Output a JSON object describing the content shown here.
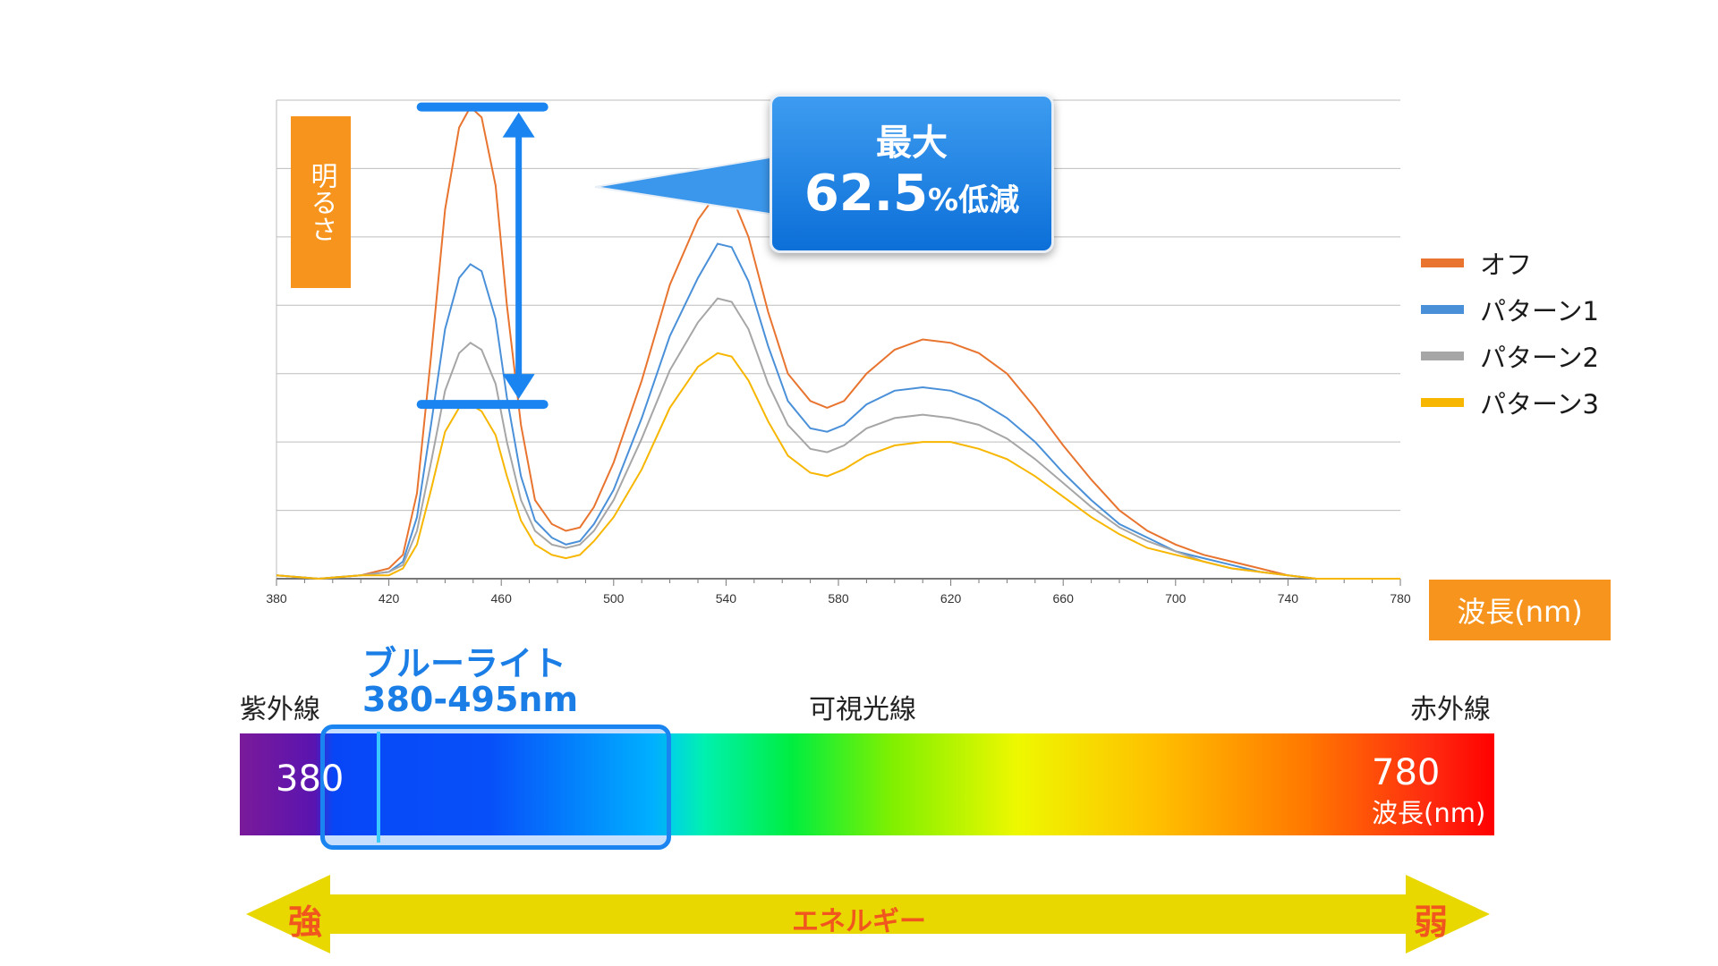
{
  "chart_data": {
    "type": "line",
    "title": "",
    "ylabel": "明るさ",
    "xlabel": "波長(nm)",
    "xlim": [
      380,
      780
    ],
    "ylim": [
      0,
      1.4
    ],
    "x_ticks": [
      "380",
      "420",
      "460",
      "500",
      "540",
      "580",
      "620",
      "660",
      "700",
      "740",
      "780"
    ],
    "grid": true,
    "legend_position": "right",
    "series": [
      {
        "name": "オフ",
        "color": "#e8742f",
        "points": [
          [
            380,
            0.01
          ],
          [
            395,
            0.0
          ],
          [
            410,
            0.01
          ],
          [
            420,
            0.03
          ],
          [
            425,
            0.07
          ],
          [
            430,
            0.25
          ],
          [
            435,
            0.65
          ],
          [
            440,
            1.08
          ],
          [
            445,
            1.32
          ],
          [
            449,
            1.38
          ],
          [
            453,
            1.35
          ],
          [
            458,
            1.15
          ],
          [
            462,
            0.8
          ],
          [
            467,
            0.45
          ],
          [
            472,
            0.23
          ],
          [
            478,
            0.16
          ],
          [
            483,
            0.14
          ],
          [
            488,
            0.15
          ],
          [
            493,
            0.21
          ],
          [
            500,
            0.34
          ],
          [
            510,
            0.58
          ],
          [
            520,
            0.86
          ],
          [
            530,
            1.05
          ],
          [
            537,
            1.13
          ],
          [
            542,
            1.12
          ],
          [
            548,
            1.0
          ],
          [
            555,
            0.78
          ],
          [
            562,
            0.6
          ],
          [
            570,
            0.52
          ],
          [
            576,
            0.5
          ],
          [
            582,
            0.52
          ],
          [
            590,
            0.6
          ],
          [
            600,
            0.67
          ],
          [
            610,
            0.7
          ],
          [
            620,
            0.69
          ],
          [
            630,
            0.66
          ],
          [
            640,
            0.6
          ],
          [
            650,
            0.5
          ],
          [
            660,
            0.39
          ],
          [
            670,
            0.29
          ],
          [
            680,
            0.2
          ],
          [
            690,
            0.14
          ],
          [
            700,
            0.1
          ],
          [
            710,
            0.07
          ],
          [
            720,
            0.05
          ],
          [
            730,
            0.03
          ],
          [
            740,
            0.01
          ],
          [
            750,
            0.0
          ],
          [
            760,
            0.0
          ],
          [
            770,
            0.0
          ],
          [
            780,
            0.0
          ]
        ]
      },
      {
        "name": "パターン1",
        "color": "#4a90d9",
        "points": [
          [
            380,
            0.01
          ],
          [
            395,
            0.0
          ],
          [
            410,
            0.01
          ],
          [
            420,
            0.02
          ],
          [
            425,
            0.05
          ],
          [
            430,
            0.18
          ],
          [
            435,
            0.45
          ],
          [
            440,
            0.73
          ],
          [
            445,
            0.88
          ],
          [
            449,
            0.92
          ],
          [
            453,
            0.9
          ],
          [
            458,
            0.76
          ],
          [
            462,
            0.53
          ],
          [
            467,
            0.3
          ],
          [
            472,
            0.17
          ],
          [
            478,
            0.12
          ],
          [
            483,
            0.1
          ],
          [
            488,
            0.11
          ],
          [
            493,
            0.16
          ],
          [
            500,
            0.26
          ],
          [
            510,
            0.47
          ],
          [
            520,
            0.71
          ],
          [
            530,
            0.88
          ],
          [
            537,
            0.98
          ],
          [
            542,
            0.97
          ],
          [
            548,
            0.87
          ],
          [
            555,
            0.68
          ],
          [
            562,
            0.52
          ],
          [
            570,
            0.44
          ],
          [
            576,
            0.43
          ],
          [
            582,
            0.45
          ],
          [
            590,
            0.51
          ],
          [
            600,
            0.55
          ],
          [
            610,
            0.56
          ],
          [
            620,
            0.55
          ],
          [
            630,
            0.52
          ],
          [
            640,
            0.47
          ],
          [
            650,
            0.4
          ],
          [
            660,
            0.31
          ],
          [
            670,
            0.23
          ],
          [
            680,
            0.16
          ],
          [
            690,
            0.12
          ],
          [
            700,
            0.08
          ],
          [
            710,
            0.06
          ],
          [
            720,
            0.04
          ],
          [
            730,
            0.02
          ],
          [
            740,
            0.01
          ],
          [
            750,
            0.0
          ],
          [
            760,
            0.0
          ],
          [
            770,
            0.0
          ],
          [
            780,
            0.0
          ]
        ]
      },
      {
        "name": "パターン2",
        "color": "#a6a6a6",
        "points": [
          [
            380,
            0.01
          ],
          [
            395,
            0.0
          ],
          [
            410,
            0.01
          ],
          [
            420,
            0.02
          ],
          [
            425,
            0.04
          ],
          [
            430,
            0.14
          ],
          [
            435,
            0.34
          ],
          [
            440,
            0.55
          ],
          [
            445,
            0.66
          ],
          [
            449,
            0.69
          ],
          [
            453,
            0.67
          ],
          [
            458,
            0.57
          ],
          [
            462,
            0.4
          ],
          [
            467,
            0.23
          ],
          [
            472,
            0.14
          ],
          [
            478,
            0.1
          ],
          [
            483,
            0.09
          ],
          [
            488,
            0.1
          ],
          [
            493,
            0.14
          ],
          [
            500,
            0.23
          ],
          [
            510,
            0.41
          ],
          [
            520,
            0.61
          ],
          [
            530,
            0.75
          ],
          [
            537,
            0.82
          ],
          [
            542,
            0.81
          ],
          [
            548,
            0.73
          ],
          [
            555,
            0.57
          ],
          [
            562,
            0.45
          ],
          [
            570,
            0.38
          ],
          [
            576,
            0.37
          ],
          [
            582,
            0.39
          ],
          [
            590,
            0.44
          ],
          [
            600,
            0.47
          ],
          [
            610,
            0.48
          ],
          [
            620,
            0.47
          ],
          [
            630,
            0.45
          ],
          [
            640,
            0.41
          ],
          [
            650,
            0.35
          ],
          [
            660,
            0.28
          ],
          [
            670,
            0.21
          ],
          [
            680,
            0.15
          ],
          [
            690,
            0.11
          ],
          [
            700,
            0.08
          ],
          [
            710,
            0.05
          ],
          [
            720,
            0.03
          ],
          [
            730,
            0.02
          ],
          [
            740,
            0.01
          ],
          [
            750,
            0.0
          ],
          [
            760,
            0.0
          ],
          [
            770,
            0.0
          ],
          [
            780,
            0.0
          ]
        ]
      },
      {
        "name": "パターン3",
        "color": "#f7b600",
        "points": [
          [
            380,
            0.01
          ],
          [
            395,
            0.0
          ],
          [
            410,
            0.01
          ],
          [
            420,
            0.01
          ],
          [
            425,
            0.03
          ],
          [
            430,
            0.1
          ],
          [
            435,
            0.26
          ],
          [
            440,
            0.43
          ],
          [
            445,
            0.5
          ],
          [
            449,
            0.51
          ],
          [
            453,
            0.49
          ],
          [
            458,
            0.42
          ],
          [
            462,
            0.3
          ],
          [
            467,
            0.17
          ],
          [
            472,
            0.1
          ],
          [
            478,
            0.07
          ],
          [
            483,
            0.06
          ],
          [
            488,
            0.07
          ],
          [
            493,
            0.11
          ],
          [
            500,
            0.18
          ],
          [
            510,
            0.32
          ],
          [
            520,
            0.5
          ],
          [
            530,
            0.62
          ],
          [
            537,
            0.66
          ],
          [
            542,
            0.65
          ],
          [
            548,
            0.58
          ],
          [
            555,
            0.46
          ],
          [
            562,
            0.36
          ],
          [
            570,
            0.31
          ],
          [
            576,
            0.3
          ],
          [
            582,
            0.32
          ],
          [
            590,
            0.36
          ],
          [
            600,
            0.39
          ],
          [
            610,
            0.4
          ],
          [
            620,
            0.4
          ],
          [
            630,
            0.38
          ],
          [
            640,
            0.35
          ],
          [
            650,
            0.3
          ],
          [
            660,
            0.24
          ],
          [
            670,
            0.18
          ],
          [
            680,
            0.13
          ],
          [
            690,
            0.09
          ],
          [
            700,
            0.07
          ],
          [
            710,
            0.05
          ],
          [
            720,
            0.03
          ],
          [
            730,
            0.02
          ],
          [
            740,
            0.01
          ],
          [
            750,
            0.0
          ],
          [
            760,
            0.0
          ],
          [
            770,
            0.0
          ],
          [
            780,
            0.0
          ]
        ]
      }
    ],
    "annotation": {
      "line1": "最大",
      "line2_number": "62.5",
      "line2_suffix": "%低減"
    }
  },
  "spectrum": {
    "blue_light_title": "ブルーライト",
    "blue_light_range": "380-495nm",
    "uv_label": "紫外線",
    "visible_label": "可視光線",
    "ir_label": "赤外線",
    "start_value": "380",
    "end_value": "780",
    "unit": "波長(nm)"
  },
  "energy": {
    "label": "エネルギー",
    "strong": "強",
    "weak": "弱",
    "arrow_color": "#e8d800"
  }
}
